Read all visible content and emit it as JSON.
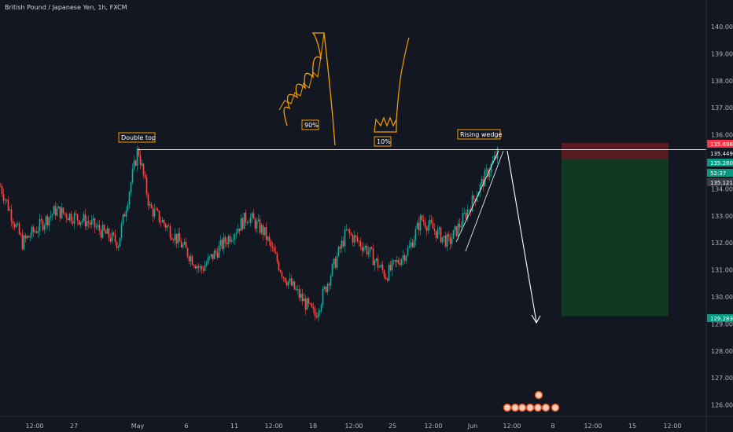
{
  "header": {
    "symbol_title": "British Pound / Japanese Yen, 1h, FXCM"
  },
  "colors": {
    "background": "#131722",
    "candle_up": "#26a69a",
    "candle_down": "#ef5350",
    "annotation": "#f59e00",
    "resistance_line": "#ffffff",
    "stop_zone": "#5d1a22",
    "target_zone": "#0f3a22"
  },
  "chart_data": {
    "type": "candlestick",
    "title": "",
    "xlabel": "",
    "ylabel": "",
    "ylim": [
      125.6,
      141.1
    ],
    "y_ticks": [
      "126.000",
      "127.000",
      "128.000",
      "129.000",
      "130.000",
      "131.000",
      "132.000",
      "133.000",
      "134.000",
      "135.000",
      "136.000",
      "137.000",
      "138.000",
      "139.000",
      "140.000"
    ],
    "x_ticks": [
      "12:00",
      "27",
      "May",
      "6",
      "11",
      "12:00",
      "18",
      "12:00",
      "25",
      "12:00",
      "Jun",
      "12:00",
      "8",
      "12:00",
      "15",
      "12:00"
    ],
    "price_path_keypoints": [
      {
        "x": "Apr 21",
        "y": 134.1
      },
      {
        "x": "Apr 23",
        "y": 132.0
      },
      {
        "x": "Apr 25",
        "y": 133.2
      },
      {
        "x": "Apr 28",
        "y": 132.8
      },
      {
        "x": "Apr 30",
        "y": 132.0
      },
      {
        "x": "May 1",
        "y": 135.5
      },
      {
        "x": "May 2",
        "y": 133.3
      },
      {
        "x": "May 5",
        "y": 132.5
      },
      {
        "x": "May 7",
        "y": 131.0
      },
      {
        "x": "May 9",
        "y": 132.2
      },
      {
        "x": "May 12",
        "y": 133.0
      },
      {
        "x": "May 14",
        "y": 132.4
      },
      {
        "x": "May 16",
        "y": 130.8
      },
      {
        "x": "May 18",
        "y": 129.3
      },
      {
        "x": "May 20",
        "y": 132.4
      },
      {
        "x": "May 22",
        "y": 131.8
      },
      {
        "x": "May 25",
        "y": 130.8
      },
      {
        "x": "May 27",
        "y": 131.8
      },
      {
        "x": "May 28",
        "y": 132.9
      },
      {
        "x": "May 30",
        "y": 132.0
      },
      {
        "x": "Jun 1",
        "y": 132.7
      },
      {
        "x": "Jun 3",
        "y": 135.3
      }
    ],
    "annotations": [
      {
        "label": "Double top",
        "kind": "text-box"
      },
      {
        "label": "90%",
        "kind": "text-box"
      },
      {
        "label": "10%",
        "kind": "text-box"
      },
      {
        "label": "Rising wedge",
        "kind": "text-box"
      },
      {
        "label": "resistance",
        "kind": "horizontal-line",
        "y": 135.449
      },
      {
        "label": "projection",
        "kind": "arrow",
        "from": 135.449,
        "to": 129.2
      }
    ],
    "position": {
      "type": "short",
      "entry": 135.449,
      "stop": 135.696,
      "target": 129.283
    },
    "price_tags": [
      {
        "text": "135.696",
        "bg": "#f23645",
        "y": 135.696
      },
      {
        "text": "135.449",
        "bg": "#131722",
        "y": 135.449
      },
      {
        "text": "135.280",
        "bg": "#089981",
        "y": 135.28
      },
      {
        "text": "52:37",
        "bg": "#089981",
        "y": 135.05
      },
      {
        "text": "135.121",
        "bg": "#3a3e4a",
        "y": 134.8
      },
      {
        "text": "129.283",
        "bg": "#089981",
        "y": 129.283
      }
    ]
  }
}
